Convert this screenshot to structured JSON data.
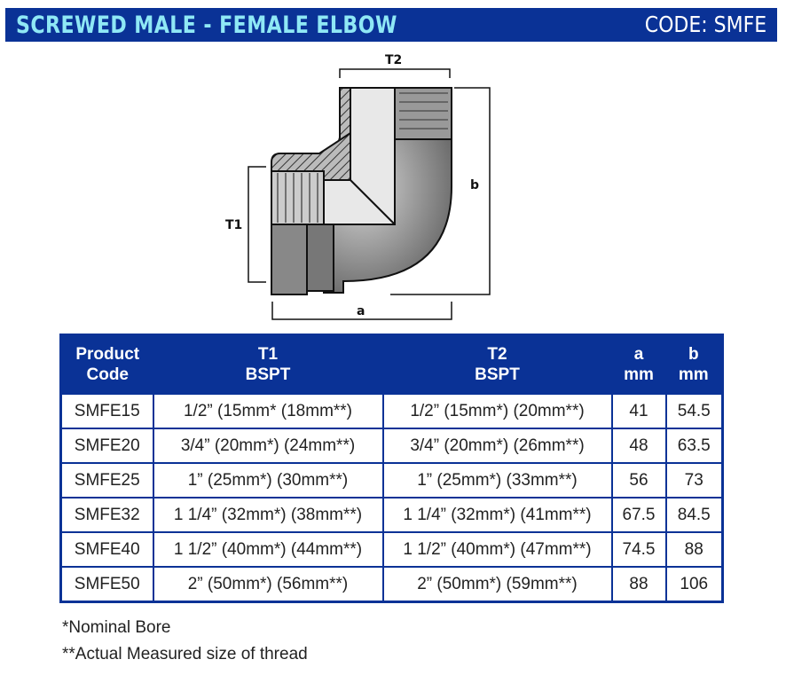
{
  "header": {
    "title": "SCREWED MALE - FEMALE ELBOW",
    "code": "CODE: SMFE",
    "color": "#0a3296"
  },
  "diagram": {
    "labels": {
      "t2": "T2",
      "t1": "T1",
      "a": "a",
      "b": "b"
    }
  },
  "table": {
    "headers": [
      [
        "Product",
        "Code"
      ],
      [
        "T1",
        "BSPT"
      ],
      [
        "T2",
        "BSPT"
      ],
      [
        "a",
        "mm"
      ],
      [
        "b",
        "mm"
      ]
    ],
    "rows": [
      [
        "SMFE15",
        "1/2” (15mm* (18mm**)",
        "1/2” (15mm*) (20mm**)",
        "41",
        "54.5"
      ],
      [
        "SMFE20",
        "3/4” (20mm*) (24mm**)",
        "3/4” (20mm*) (26mm**)",
        "48",
        "63.5"
      ],
      [
        "SMFE25",
        "1” (25mm*) (30mm**)",
        "1” (25mm*) (33mm**)",
        "56",
        "73"
      ],
      [
        "SMFE32",
        "1 1/4” (32mm*) (38mm**)",
        "1 1/4” (32mm*) (41mm**)",
        "67.5",
        "84.5"
      ],
      [
        "SMFE40",
        "1 1/2” (40mm*) (44mm**)",
        "1 1/2” (40mm*) (47mm**)",
        "74.5",
        "88"
      ],
      [
        "SMFE50",
        "2” (50mm*) (56mm**)",
        "2” (50mm*) (59mm**)",
        "88",
        "106"
      ]
    ]
  },
  "notes": [
    "*Nominal Bore",
    "**Actual Measured size of thread"
  ]
}
